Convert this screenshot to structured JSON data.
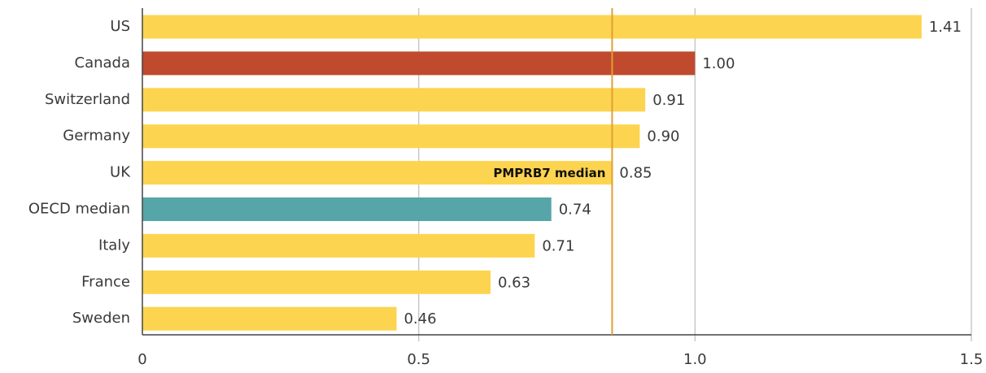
{
  "chart_data": {
    "type": "hbar",
    "categories": [
      "US",
      "Canada",
      "Switzerland",
      "Germany",
      "UK",
      "OECD median",
      "Italy",
      "France",
      "Sweden"
    ],
    "values": [
      1.41,
      1,
      0.91,
      0.9,
      0.85,
      0.74,
      0.71,
      0.63,
      0.46
    ],
    "value_labels": [
      "1.41",
      "1.00",
      "0.91",
      "0.90",
      "0.85",
      "0.74",
      "0.71",
      "0.63",
      "0.46"
    ],
    "colors": [
      "#fdd44f",
      "#c04a2d",
      "#fdd44f",
      "#fdd44f",
      "#fdd44f",
      "#56a5a8",
      "#fdd44f",
      "#fdd44f",
      "#fdd44f"
    ],
    "xlim": [
      0,
      1.5
    ],
    "xticks": [
      0,
      0.5,
      {
        "value": 1,
        "label": "1.0"
      },
      1.5
    ],
    "grid": true,
    "reference_line": {
      "value": 0.85,
      "label": "PMPRB7 median",
      "color": "#e0a035"
    }
  }
}
